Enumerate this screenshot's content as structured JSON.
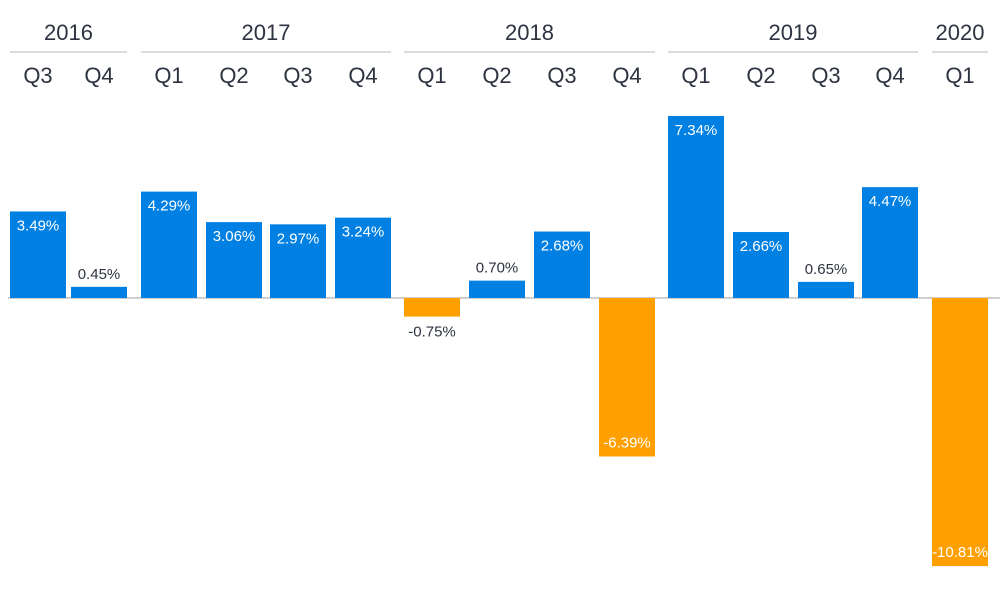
{
  "chart_data": {
    "type": "bar",
    "title": "",
    "xlabel": "",
    "ylabel": "",
    "groups": [
      {
        "year": "2016",
        "quarters": [
          "Q3",
          "Q4"
        ]
      },
      {
        "year": "2017",
        "quarters": [
          "Q1",
          "Q2",
          "Q3",
          "Q4"
        ]
      },
      {
        "year": "2018",
        "quarters": [
          "Q1",
          "Q2",
          "Q3",
          "Q4"
        ]
      },
      {
        "year": "2019",
        "quarters": [
          "Q1",
          "Q2",
          "Q3",
          "Q4"
        ]
      },
      {
        "year": "2020",
        "quarters": [
          "Q1"
        ]
      }
    ],
    "values": [
      3.49,
      0.45,
      4.29,
      3.06,
      2.97,
      3.24,
      -0.75,
      0.7,
      2.68,
      -6.39,
      7.34,
      2.66,
      0.65,
      4.47,
      -10.81
    ],
    "labels": [
      "3.49%",
      "0.45%",
      "4.29%",
      "3.06%",
      "2.97%",
      "3.24%",
      "-0.75%",
      "0.70%",
      "2.68%",
      "-6.39%",
      "7.34%",
      "2.66%",
      "0.65%",
      "4.47%",
      "-10.81%"
    ],
    "ylim": [
      -10.81,
      7.34
    ],
    "grid": false,
    "legend": "none",
    "colors": {
      "positive": "#0080E2",
      "negative": "#FFA000",
      "text": "#2D3340",
      "axis": "#D0D0D0"
    }
  }
}
